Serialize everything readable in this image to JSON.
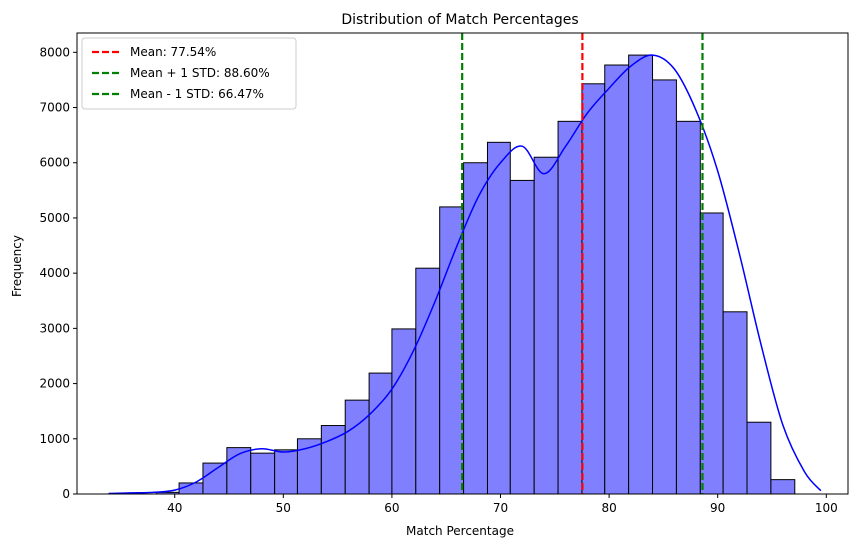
{
  "chart_data": {
    "type": "bar",
    "title": "Distribution of Match Percentages",
    "xlabel": "Match Percentage",
    "ylabel": "Frequency",
    "xlim": [
      31,
      102
    ],
    "ylim": [
      0,
      8350
    ],
    "xticks": [
      40,
      50,
      60,
      70,
      80,
      90,
      100
    ],
    "yticks": [
      0,
      1000,
      2000,
      3000,
      4000,
      5000,
      6000,
      7000,
      8000
    ],
    "bin_edges": [
      33.9,
      36.1,
      38.3,
      40.4,
      42.6,
      44.8,
      47.0,
      49.2,
      51.3,
      53.5,
      55.7,
      57.9,
      60.0,
      62.2,
      64.4,
      66.6,
      68.8,
      70.9,
      73.1,
      75.3,
      77.5,
      79.6,
      81.8,
      84.0,
      86.2,
      88.4,
      90.5,
      92.7,
      94.9,
      97.1,
      99.3
    ],
    "bin_counts": [
      0,
      0,
      30,
      200,
      560,
      840,
      740,
      800,
      1000,
      1240,
      1700,
      2190,
      2990,
      4090,
      5200,
      6000,
      6370,
      5680,
      6100,
      6750,
      7430,
      7770,
      7950,
      7500,
      6750,
      5090,
      3300,
      1300,
      260,
      0
    ],
    "bar_color": "#8080ff",
    "bar_edge_color": "#000000",
    "kde": {
      "color": "#0000ff",
      "x": [
        33.9,
        36,
        38,
        40,
        42,
        44,
        46,
        48,
        50,
        52,
        54,
        56,
        58,
        60,
        62,
        64,
        66,
        68,
        70,
        72,
        74,
        76,
        78,
        80,
        82,
        84,
        86,
        88,
        90,
        92,
        94,
        96,
        98,
        99.5
      ],
      "y": [
        10,
        20,
        30,
        70,
        220,
        480,
        730,
        820,
        760,
        820,
        950,
        1140,
        1450,
        1900,
        2600,
        3500,
        4500,
        5400,
        6000,
        6300,
        5800,
        6300,
        6900,
        7350,
        7750,
        7950,
        7700,
        6950,
        5850,
        4350,
        2700,
        1250,
        400,
        60
      ]
    },
    "vlines": [
      {
        "label": "Mean: 77.54%",
        "x": 77.54,
        "color": "#ff0000",
        "style": "dashed"
      },
      {
        "label": "Mean + 1 STD: 88.60%",
        "x": 88.6,
        "color": "#008000",
        "style": "dashed"
      },
      {
        "label": "Mean - 1 STD: 66.47%",
        "x": 66.47,
        "color": "#008000",
        "style": "dashed"
      }
    ],
    "legend": {
      "placement": "top-left",
      "entries": [
        "Mean: 77.54%",
        "Mean + 1 STD: 88.60%",
        "Mean - 1 STD: 66.47%"
      ]
    },
    "grid": false
  }
}
